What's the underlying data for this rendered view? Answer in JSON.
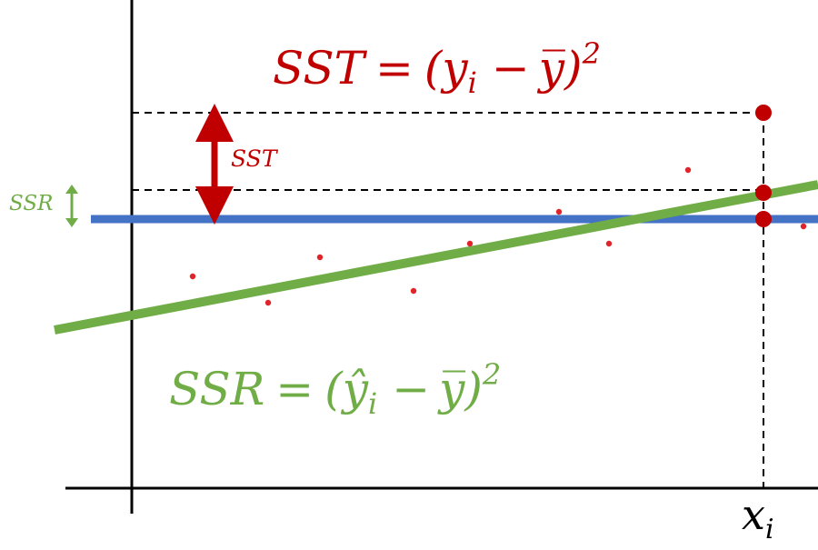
{
  "colors": {
    "sst": "#c00000",
    "ssr": "#70ad47",
    "mean_line": "#4472c4",
    "points": "#e0242a",
    "axes": "#000000"
  },
  "labels": {
    "sst_equation": {
      "lhs": "SST",
      "eq": "=",
      "open": "(",
      "y": "y",
      "sub_i": "i",
      "minus": "−",
      "ybar": "y̅",
      "close": ")",
      "exp": "2"
    },
    "ssr_equation": {
      "lhs": "SSR",
      "eq": "=",
      "open": "(",
      "yhat": "ŷ",
      "sub_i": "i",
      "minus": "−",
      "ybar": "y̅",
      "close": ")",
      "exp": "2"
    },
    "sst_arrow_label": "SST",
    "ssr_arrow_label": "SSR",
    "x_axis_tick": {
      "x": "x",
      "sub": "i"
    }
  }
}
